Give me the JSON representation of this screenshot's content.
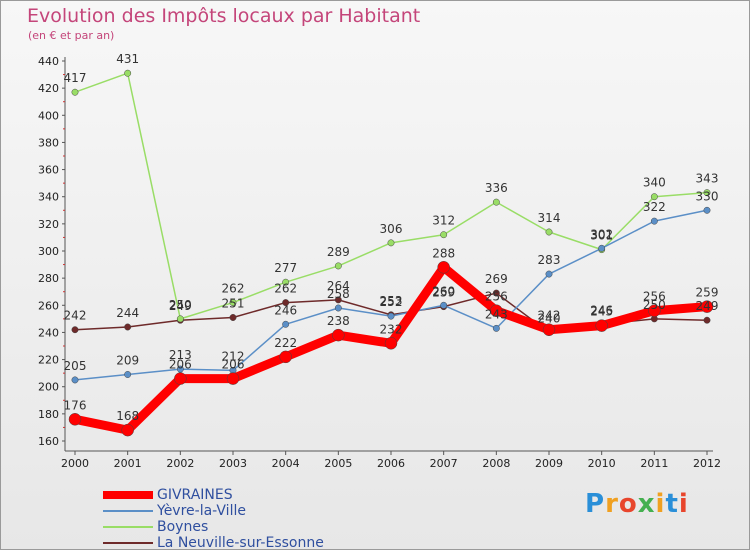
{
  "chart_data": {
    "type": "line",
    "title": "Evolution des Impôts locaux par Habitant",
    "subtitle": "(en € et par an)",
    "x": [
      "2000",
      "2001",
      "2002",
      "2003",
      "2004",
      "2005",
      "2006",
      "2007",
      "2008",
      "2009",
      "2010",
      "2011",
      "2012"
    ],
    "ylim": [
      160,
      440
    ],
    "yticks": [
      160,
      180,
      200,
      220,
      240,
      260,
      280,
      300,
      320,
      340,
      360,
      380,
      400,
      420,
      440
    ],
    "grid": false,
    "legend_position": "bottom-left",
    "series": [
      {
        "name": "GIVRAINES",
        "color": "#ff0000",
        "width": 9,
        "values": [
          176,
          168,
          206,
          206,
          222,
          238,
          232,
          288,
          256,
          242,
          245,
          256,
          259
        ],
        "labels": [
          "176",
          "168",
          "206",
          "206",
          "222",
          "238",
          "232",
          "288",
          "256",
          "242",
          "245",
          "256",
          "259"
        ]
      },
      {
        "name": "Yèvre-la-Ville",
        "color": "#5b8fc7",
        "width": 1.5,
        "values": [
          205,
          209,
          213,
          212,
          246,
          258,
          252,
          260,
          243,
          283,
          302,
          322,
          330
        ],
        "labels": [
          "205",
          "209",
          "213",
          "212",
          "246",
          "258",
          "252",
          "260",
          "243",
          "283",
          "302",
          "322",
          "330"
        ]
      },
      {
        "name": "Boynes",
        "color": "#99dd66",
        "width": 1.5,
        "values": [
          417,
          431,
          250,
          262,
          277,
          289,
          306,
          312,
          336,
          314,
          301,
          340,
          343
        ],
        "labels": [
          "417",
          "431",
          "250",
          "262",
          "277",
          "289",
          "306",
          "312",
          "336",
          "314",
          "301",
          "340",
          "343"
        ]
      },
      {
        "name": "La Neuville-sur-Essonne",
        "color": "#6e2a2a",
        "width": 1.5,
        "values": [
          242,
          244,
          249,
          251,
          262,
          264,
          253,
          259,
          269,
          240,
          246,
          250,
          249
        ],
        "labels": [
          "242",
          "244",
          "249",
          "251",
          "262",
          "264",
          "253",
          "259",
          "269",
          "240",
          "246",
          "250",
          "249"
        ]
      }
    ]
  },
  "logo": {
    "text": "Proxiti",
    "letters": [
      "P",
      "r",
      "o",
      "x",
      "i",
      "t",
      "i"
    ],
    "colors": [
      "#2a8fd8",
      "#f0a020",
      "#e8452c",
      "#44b050",
      "#f0a020",
      "#2a8fd8",
      "#e8452c"
    ]
  }
}
